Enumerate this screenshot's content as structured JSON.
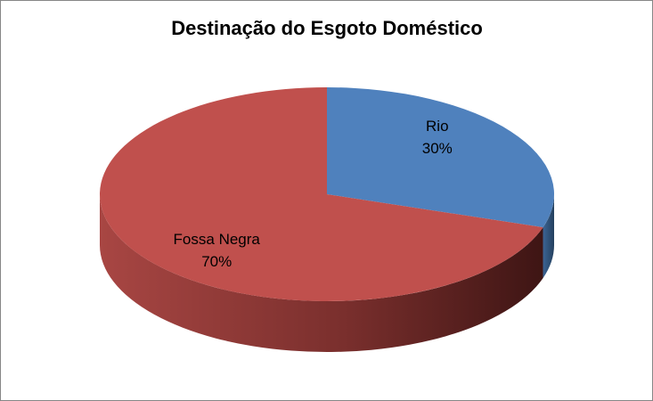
{
  "chart_data": {
    "type": "pie",
    "title": "Destinação do Esgoto Doméstico",
    "categories": [
      "Rio",
      "Fossa Negra"
    ],
    "values": [
      30,
      70
    ],
    "value_labels": [
      "30%",
      "70%"
    ],
    "colors": [
      "#4f81bd",
      "#c0504d"
    ]
  }
}
